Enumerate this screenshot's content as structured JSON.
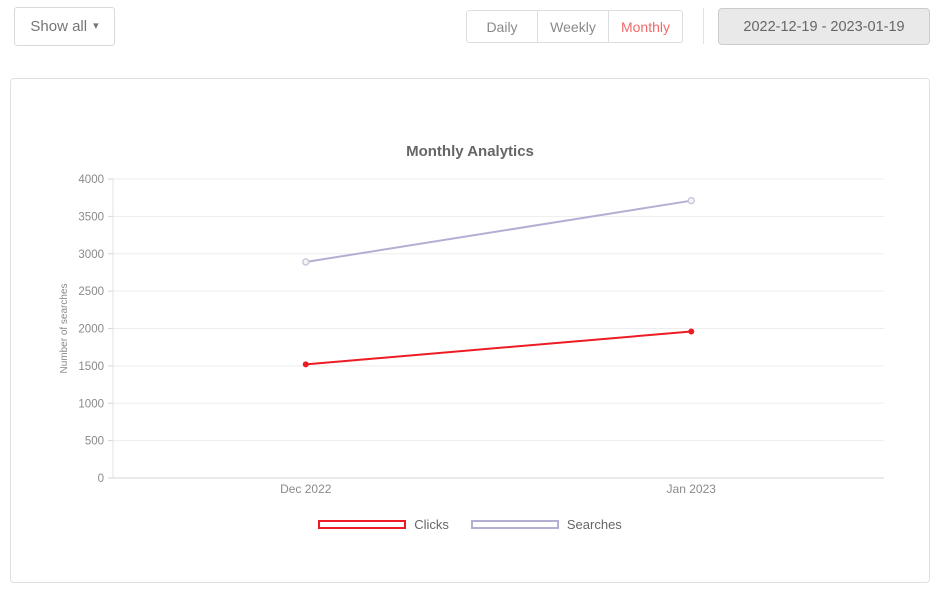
{
  "toolbar": {
    "show_all_label": "Show all",
    "caret_icon": "▾",
    "tabs": [
      {
        "label": "Daily",
        "active": false
      },
      {
        "label": "Weekly",
        "active": false
      },
      {
        "label": "Monthly",
        "active": true
      }
    ],
    "date_range_label": "2022-12-19 - 2023-01-19"
  },
  "colors": {
    "active_tab": "#f16a6a",
    "clicks_line": "#ed1c24",
    "searches_line": "#b3afd3",
    "axis_text": "#8a8a8a",
    "grid_line": "#ededed"
  },
  "chart_data": {
    "type": "line",
    "title": "Monthly Analytics",
    "xlabel": "",
    "ylabel": "Number of searches",
    "categories": [
      "Dec 2022",
      "Jan 2023"
    ],
    "series": [
      {
        "name": "Clicks",
        "values": [
          1520,
          1960
        ],
        "color": "#ed1c24",
        "marker_fill": "#ed1c24",
        "marker_stroke": "none"
      },
      {
        "name": "Searches",
        "values": [
          2890,
          3710
        ],
        "color": "#b3afd3",
        "marker_fill": "#f5f5f7",
        "marker_stroke": "#c9c6d9"
      }
    ],
    "ylim": [
      0,
      4000
    ],
    "ytick_step": 500,
    "grid": true,
    "legend_position": "bottom"
  }
}
